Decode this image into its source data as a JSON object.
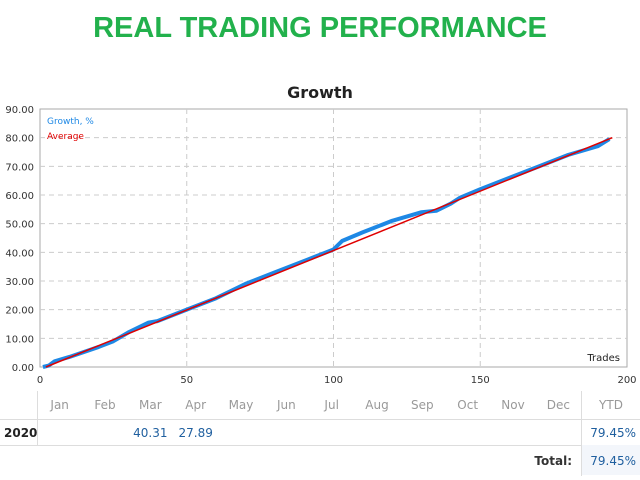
{
  "header": {
    "title": "REAL TRADING PERFORMANCE"
  },
  "chart_data": {
    "type": "line",
    "title": "Growth",
    "xlabel": "Trades",
    "ylabel": "",
    "xlim": [
      0,
      200
    ],
    "ylim": [
      0,
      90
    ],
    "xticks": [
      "0",
      "50",
      "100",
      "150",
      "200"
    ],
    "yticks": [
      "0.00",
      "10.00",
      "20.00",
      "30.00",
      "40.00",
      "50.00",
      "60.00",
      "70.00",
      "80.00",
      "90.00"
    ],
    "legend": [
      "Growth, %",
      "Average"
    ],
    "legend_position": "top-left",
    "colors": {
      "growth": "#1e88e5",
      "average": "#e00000"
    },
    "series": [
      {
        "name": "Growth, %",
        "x": [
          1,
          3,
          5,
          10,
          20,
          25,
          30,
          37,
          40,
          45,
          50,
          60,
          70,
          80,
          90,
          100,
          103,
          110,
          120,
          130,
          135,
          140,
          143,
          150,
          160,
          170,
          180,
          190,
          194
        ],
        "y": [
          0,
          0.5,
          2,
          3.5,
          7,
          9,
          12,
          15.5,
          16,
          18,
          20,
          24,
          29,
          33,
          37,
          41,
          44,
          47,
          51,
          54,
          54.5,
          57,
          59,
          62,
          66,
          70,
          74,
          77,
          79.5
        ]
      },
      {
        "name": "Average",
        "x": [
          2,
          195
        ],
        "y": [
          0,
          80
        ]
      }
    ]
  },
  "table": {
    "months": [
      "Jan",
      "Feb",
      "Mar",
      "Apr",
      "May",
      "Jun",
      "Jul",
      "Aug",
      "Sep",
      "Oct",
      "Nov",
      "Dec"
    ],
    "ytd_label": "YTD",
    "year": "2020",
    "values": [
      "",
      "",
      "40.31",
      "27.89",
      "",
      "",
      "",
      "",
      "",
      "",
      "",
      ""
    ],
    "ytd": "79.45%",
    "total_label": "Total:",
    "total": "79.45%"
  }
}
